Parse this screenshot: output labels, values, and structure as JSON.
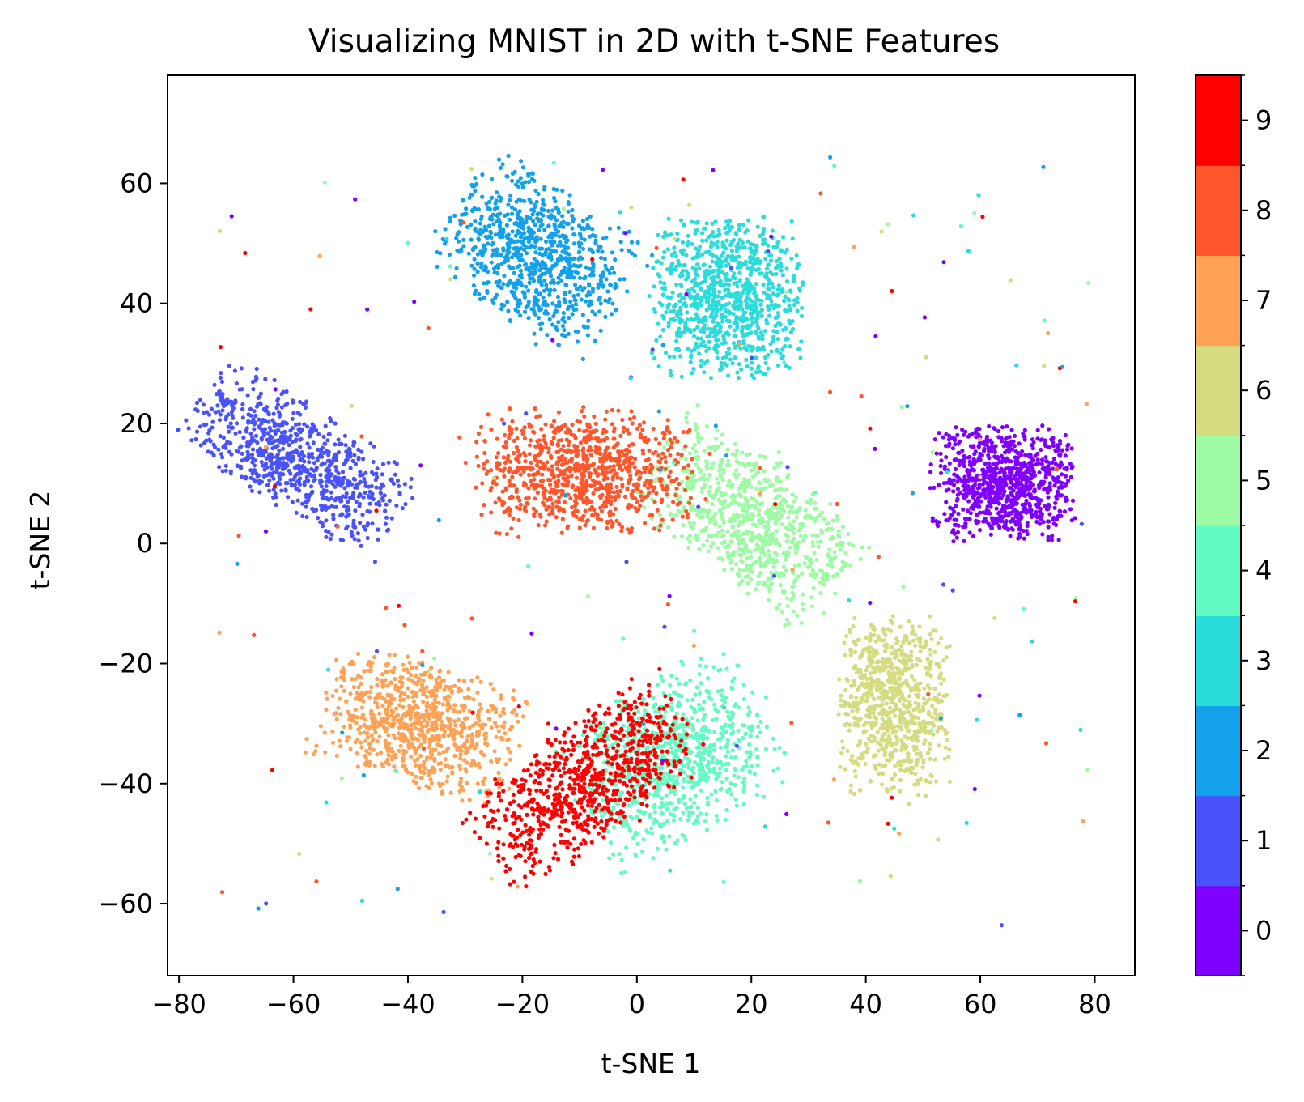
{
  "chart_data": {
    "type": "scatter",
    "title": "Visualizing MNIST in 2D with t-SNE Features",
    "xlabel": "t-SNE 1",
    "ylabel": "t-SNE 2",
    "xlim": [
      -82,
      87
    ],
    "ylim": [
      -72,
      78
    ],
    "xticks": [
      -80,
      -60,
      -40,
      -20,
      0,
      20,
      40,
      60,
      80
    ],
    "yticks": [
      -60,
      -40,
      -20,
      0,
      20,
      40,
      60
    ],
    "xtick_labels": [
      "−80",
      "−60",
      "−40",
      "−20",
      "0",
      "20",
      "40",
      "60",
      "80"
    ],
    "ytick_labels": [
      "−60",
      "−40",
      "−20",
      "0",
      "20",
      "40",
      "60"
    ],
    "grid": false,
    "colorbar": {
      "colormap": "rainbow",
      "range": [
        -0.5,
        9.5
      ],
      "ticks": [
        0,
        1,
        2,
        3,
        4,
        5,
        6,
        7,
        8,
        9
      ],
      "tick_labels": [
        "0",
        "1",
        "2",
        "3",
        "4",
        "5",
        "6",
        "7",
        "8",
        "9"
      ],
      "colors": [
        "#8000ff",
        "#4a53fb",
        "#12a1ea",
        "#2adcdc",
        "#62fbc4",
        "#9cfba3",
        "#d4dc7f",
        "#ffa256",
        "#ff562c",
        "#ff0000"
      ]
    },
    "clusters": [
      {
        "label": 0,
        "center": [
          64,
          10
        ],
        "spread": [
          8.5,
          6.5
        ],
        "count": 900
      },
      {
        "label": 1,
        "center": [
          -59,
          14
        ],
        "spread": [
          6,
          14
        ],
        "rotation_deg": 58,
        "count": 820
      },
      {
        "label": 2,
        "center": [
          -17,
          48
        ],
        "spread": [
          8,
          11
        ],
        "rotation_deg": 55,
        "count": 850
      },
      {
        "label": 3,
        "center": [
          16,
          41
        ],
        "spread": [
          9,
          9
        ],
        "count": 900
      },
      {
        "label": 4,
        "center": [
          6,
          -36
        ],
        "spread": [
          9,
          12
        ],
        "rotation_deg": 120,
        "count": 850
      },
      {
        "label": 5,
        "center": [
          20,
          4
        ],
        "spread": [
          7,
          13
        ],
        "rotation_deg": 55,
        "count": 820
      },
      {
        "label": 6,
        "center": [
          45,
          -27
        ],
        "spread": [
          6.5,
          10
        ],
        "count": 780
      },
      {
        "label": 7,
        "center": [
          -38,
          -30
        ],
        "spread": [
          7,
          12
        ],
        "rotation_deg": 75,
        "count": 820
      },
      {
        "label": 8,
        "center": [
          -9,
          12
        ],
        "spread": [
          13,
          7
        ],
        "count": 900
      },
      {
        "label": 9,
        "center": [
          -9,
          -40
        ],
        "spread": [
          6.5,
          14
        ],
        "rotation_deg": 125,
        "count": 820
      }
    ]
  }
}
